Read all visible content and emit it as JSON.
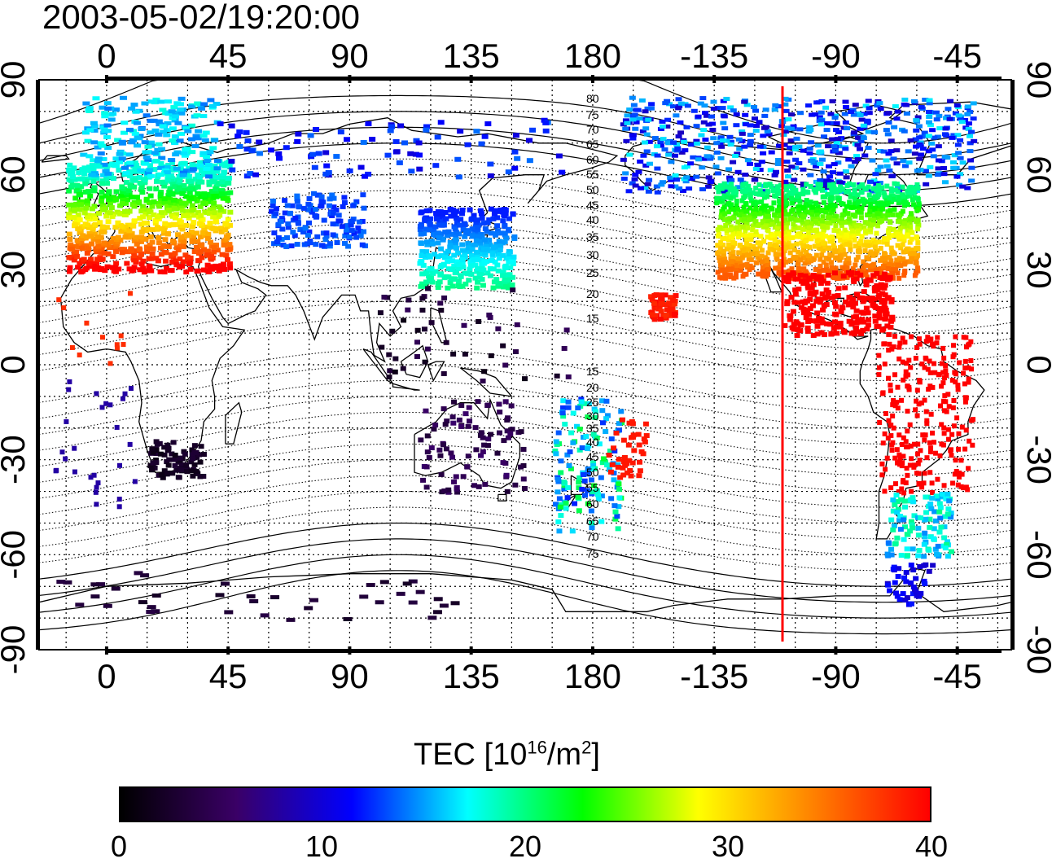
{
  "title": "2003-05-02/19:20:00",
  "top_axis_labels": [
    "0",
    "45",
    "90",
    "135",
    "180",
    "-135",
    "-90",
    "-45"
  ],
  "bottom_axis_labels": [
    "0",
    "45",
    "90",
    "135",
    "180",
    "-135",
    "-90",
    "-45"
  ],
  "left_axis_labels": [
    "90",
    "60",
    "30",
    "0",
    "-30",
    "-60",
    "-90"
  ],
  "right_axis_labels": [
    "90",
    "60",
    "30",
    "0",
    "-30",
    "-60",
    "-90"
  ],
  "mlat_contour_labels": [
    "80",
    "75",
    "70",
    "65",
    "60",
    "55",
    "50",
    "45",
    "40",
    "35",
    "30",
    "25",
    "20",
    "15",
    "15",
    "20",
    "25",
    "30",
    "35",
    "40",
    "45",
    "50",
    "55",
    "60",
    "65",
    "70",
    "75"
  ],
  "colorbar": {
    "title_main": "TEC  [10",
    "title_exp": "16",
    "title_mid": "/m",
    "title_exp2": "2",
    "title_end": "]",
    "ticks": [
      "0",
      "10",
      "20",
      "30",
      "40"
    ],
    "min": 0,
    "max": 40,
    "colors": [
      "#000000",
      "#3a0066",
      "#0000ff",
      "#00ffff",
      "#00ff00",
      "#ffff00",
      "#ff8000",
      "#ff0000"
    ]
  },
  "map": {
    "lon_range": [
      -25,
      335
    ],
    "lat_range": [
      -90,
      90
    ],
    "grid_spacing_lon": 15,
    "grid_spacing_lat": 10,
    "terminator_line_color": "#ff0000",
    "terminator_lon": -110
  }
}
